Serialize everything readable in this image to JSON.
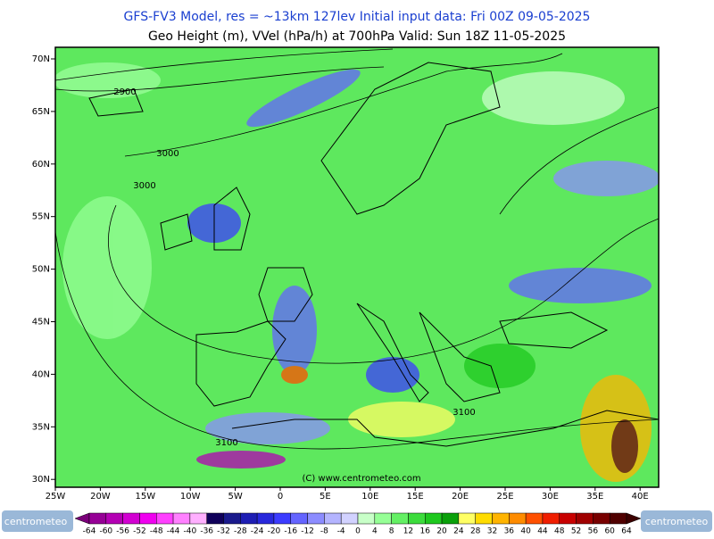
{
  "header": {
    "line1": "GFS-FV3 Model, res = ~13km 127lev    Initial input data: Fri 00Z 09-05-2025",
    "line2": "Geo Height (m), VVel (hPa/h) at 700hPa  Valid: Sun 18Z 11-05-2025"
  },
  "lat_labels": [
    "70N",
    "65N",
    "60N",
    "55N",
    "50N",
    "45N",
    "40N",
    "35N",
    "30N"
  ],
  "lon_labels": [
    "25W",
    "20W",
    "15W",
    "10W",
    "5W",
    "0",
    "5E",
    "10E",
    "15E",
    "20E",
    "25E",
    "30E",
    "35E",
    "40E"
  ],
  "contour_labels": [
    "2900",
    "3000",
    "3000",
    "3100",
    "3100"
  ],
  "watermark": "(C) www.centrometeo.com",
  "logo_left": "centrometeo",
  "logo_right": "centrometeo",
  "colorbar": {
    "labels": [
      -64,
      -60,
      -56,
      -52,
      -48,
      -44,
      -40,
      -36,
      -32,
      -28,
      -24,
      -20,
      -16,
      -12,
      -8,
      -4,
      0,
      4,
      8,
      12,
      16,
      20,
      24,
      28,
      32,
      36,
      40,
      44,
      48,
      52,
      56,
      60,
      64
    ],
    "colors": [
      "#7a0079",
      "#960096",
      "#b400b4",
      "#d200d2",
      "#f000f0",
      "#ff40ff",
      "#ff80ff",
      "#ffb0ff",
      "#10005a",
      "#1a1a8c",
      "#1e1eb4",
      "#2828dc",
      "#3c3cff",
      "#6464ff",
      "#8c8cff",
      "#b4b4ff",
      "#d2d2ff",
      "#c8ffc8",
      "#96ff96",
      "#64f064",
      "#3cdc3c",
      "#1ec81e",
      "#0aa00a",
      "#ffff64",
      "#ffdc00",
      "#ffb400",
      "#ff8c00",
      "#ff5000",
      "#f01e00",
      "#c80000",
      "#a00000",
      "#780000",
      "#500000",
      "#3c0000"
    ]
  }
}
